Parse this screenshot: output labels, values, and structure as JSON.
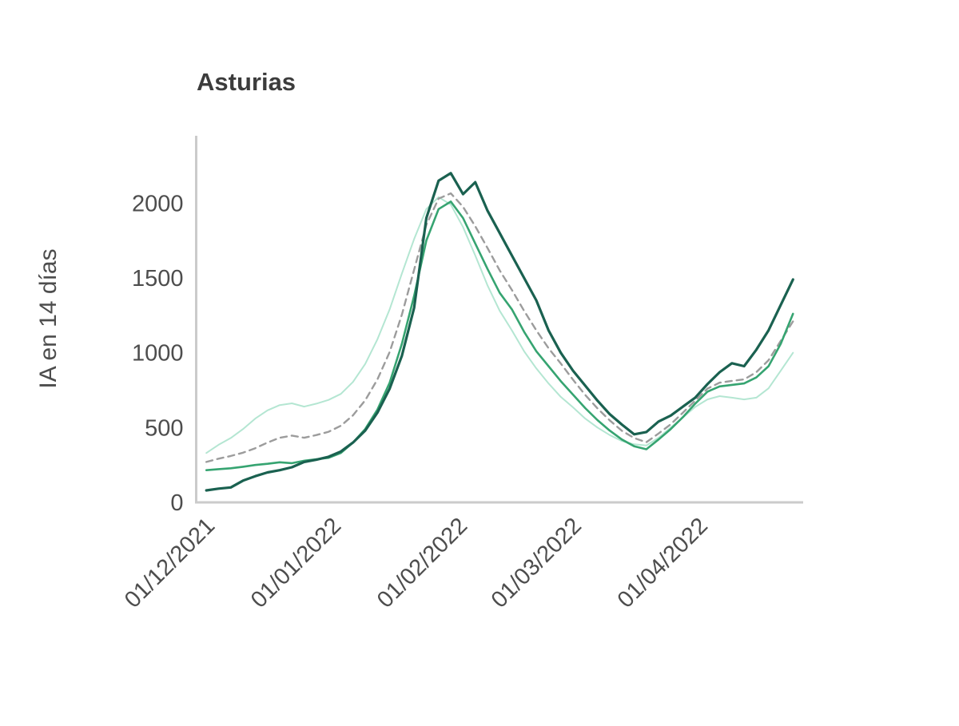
{
  "figure": {
    "background": "#ffffff"
  },
  "chart_data": {
    "type": "line",
    "title": "Asturias",
    "xlabel": "",
    "ylabel": "IA en 14 días",
    "grid": false,
    "legend": "none",
    "axis_color": "#cbcbcb",
    "text_color": "#4d4d4d",
    "x_unit": "days since 01/12/2021",
    "xlim": [
      -2.5,
      146.5
    ],
    "ylim": [
      0,
      2450
    ],
    "y_ticks": [
      0,
      500,
      1000,
      1500,
      2000
    ],
    "x_ticks": [
      {
        "day": 0,
        "label": "01/12/2021"
      },
      {
        "day": 31,
        "label": "01/01/2022"
      },
      {
        "day": 62,
        "label": "01/02/2022"
      },
      {
        "day": 90,
        "label": "01/03/2022"
      },
      {
        "day": 121,
        "label": "01/04/2022"
      }
    ],
    "x": [
      0,
      3,
      6,
      9,
      12,
      15,
      18,
      21,
      24,
      27,
      30,
      33,
      36,
      39,
      42,
      45,
      48,
      51,
      54,
      57,
      60,
      63,
      66,
      69,
      72,
      75,
      78,
      81,
      84,
      87,
      90,
      93,
      96,
      99,
      102,
      105,
      108,
      111,
      114,
      117,
      120,
      123,
      126,
      129,
      132,
      135,
      138,
      141,
      144
    ],
    "series": [
      {
        "name": "light-green",
        "color": "#b4e6d2",
        "width": 2,
        "dash": null,
        "values": [
          330,
          385,
          430,
          490,
          560,
          615,
          650,
          662,
          640,
          660,
          685,
          725,
          805,
          925,
          1090,
          1290,
          1530,
          1760,
          1960,
          2040,
          1990,
          1840,
          1650,
          1450,
          1280,
          1150,
          1010,
          895,
          795,
          705,
          635,
          560,
          500,
          450,
          410,
          388,
          380,
          432,
          500,
          568,
          638,
          688,
          710,
          700,
          688,
          700,
          762,
          880,
          1000
        ]
      },
      {
        "name": "gray-dashed",
        "color": "#9c9c9c",
        "width": 2.4,
        "dash": "8 6",
        "values": [
          270,
          292,
          310,
          332,
          362,
          400,
          432,
          446,
          432,
          450,
          472,
          512,
          582,
          682,
          822,
          1005,
          1255,
          1555,
          1855,
          2030,
          2065,
          1975,
          1845,
          1700,
          1550,
          1420,
          1280,
          1150,
          1030,
          928,
          820,
          718,
          628,
          548,
          478,
          430,
          402,
          460,
          522,
          600,
          680,
          760,
          800,
          812,
          822,
          870,
          950,
          1080,
          1210
        ]
      },
      {
        "name": "medium-green",
        "color": "#36a471",
        "width": 2.6,
        "dash": null,
        "values": [
          215,
          222,
          228,
          238,
          250,
          258,
          268,
          262,
          278,
          288,
          298,
          330,
          400,
          490,
          620,
          800,
          1060,
          1380,
          1750,
          1960,
          2010,
          1900,
          1730,
          1560,
          1400,
          1290,
          1140,
          1010,
          910,
          810,
          720,
          630,
          550,
          480,
          420,
          375,
          355,
          420,
          490,
          570,
          660,
          740,
          775,
          785,
          795,
          835,
          910,
          1060,
          1260
        ]
      },
      {
        "name": "dark-green",
        "color": "#1a6150",
        "width": 3.2,
        "dash": null,
        "values": [
          80,
          92,
          100,
          145,
          175,
          200,
          215,
          235,
          270,
          285,
          305,
          340,
          400,
          480,
          600,
          760,
          980,
          1300,
          1900,
          2150,
          2200,
          2060,
          2140,
          1950,
          1800,
          1650,
          1500,
          1350,
          1150,
          1000,
          880,
          780,
          680,
          590,
          520,
          455,
          470,
          540,
          580,
          640,
          700,
          790,
          870,
          930,
          910,
          1020,
          1150,
          1320,
          1490
        ]
      }
    ]
  }
}
